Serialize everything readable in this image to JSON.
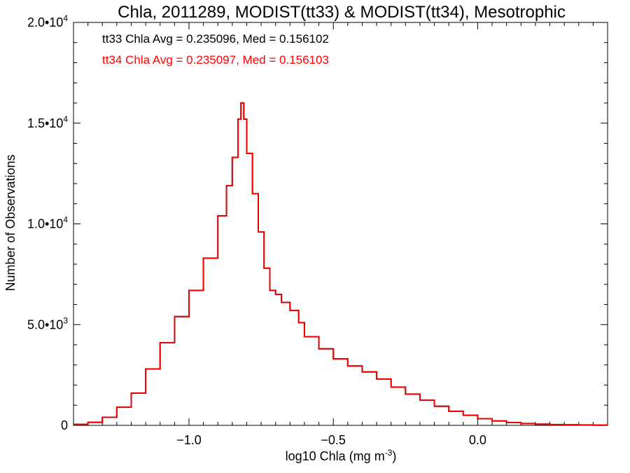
{
  "chart_data": {
    "type": "line",
    "title": "Chla, 2011289, MODIST(tt33) & MODIST(tt34), Mesotrophic",
    "xlabel": "log10 Chla (mg m",
    "xlabel_sup": "-3",
    "xlabel_end": ")",
    "ylabel": "Number of Observations",
    "xlim": [
      -1.4,
      0.45
    ],
    "ylim": [
      0,
      20000
    ],
    "x_ticks": [
      {
        "value": -1.0,
        "label": "−1.0"
      },
      {
        "value": -0.5,
        "label": "−0.5"
      },
      {
        "value": 0.0,
        "label": "0.0"
      }
    ],
    "y_ticks": [
      {
        "value": 0,
        "mant": "0",
        "exp": ""
      },
      {
        "value": 5000,
        "mant": "5.0•10",
        "exp": "3"
      },
      {
        "value": 10000,
        "mant": "1.0•10",
        "exp": "4"
      },
      {
        "value": 15000,
        "mant": "1.5•10",
        "exp": "4"
      },
      {
        "value": 20000,
        "mant": "2.0•10",
        "exp": "4"
      }
    ],
    "annotations": [
      {
        "text": "tt33 Chla Avg = 0.235096, Med = 0.156102",
        "color": "#000000"
      },
      {
        "text": "tt34 Chla Avg = 0.235097, Med = 0.156103",
        "color": "#ff0000"
      }
    ],
    "series": [
      {
        "color": "#000000",
        "x": [
          -1.4,
          -1.35,
          -1.3,
          -1.25,
          -1.2,
          -1.15,
          -1.1,
          -1.05,
          -1.0,
          -0.95,
          -0.9,
          -0.87,
          -0.85,
          -0.83,
          -0.82,
          -0.81,
          -0.8,
          -0.78,
          -0.76,
          -0.74,
          -0.72,
          -0.7,
          -0.68,
          -0.65,
          -0.62,
          -0.6,
          -0.55,
          -0.5,
          -0.45,
          -0.4,
          -0.35,
          -0.3,
          -0.25,
          -0.2,
          -0.15,
          -0.1,
          -0.05,
          0.0,
          0.05,
          0.1,
          0.15,
          0.2,
          0.25,
          0.3,
          0.35,
          0.4,
          0.45
        ],
        "y": [
          50,
          150,
          400,
          900,
          1600,
          2800,
          4100,
          5400,
          6700,
          8300,
          10400,
          11900,
          13300,
          15200,
          16000,
          15200,
          13500,
          11500,
          9600,
          7800,
          6700,
          6500,
          6100,
          5700,
          5100,
          4400,
          3800,
          3300,
          2950,
          2650,
          2300,
          1900,
          1550,
          1250,
          950,
          700,
          500,
          330,
          220,
          140,
          90,
          60,
          40,
          30,
          20,
          10,
          5
        ]
      },
      {
        "color": "#ff0000",
        "x": [
          -1.4,
          -1.35,
          -1.3,
          -1.25,
          -1.2,
          -1.15,
          -1.1,
          -1.05,
          -1.0,
          -0.95,
          -0.9,
          -0.87,
          -0.85,
          -0.83,
          -0.82,
          -0.81,
          -0.8,
          -0.78,
          -0.76,
          -0.74,
          -0.72,
          -0.7,
          -0.68,
          -0.65,
          -0.62,
          -0.6,
          -0.55,
          -0.5,
          -0.45,
          -0.4,
          -0.35,
          -0.3,
          -0.25,
          -0.2,
          -0.15,
          -0.1,
          -0.05,
          0.0,
          0.05,
          0.1,
          0.15,
          0.2,
          0.25,
          0.3,
          0.35,
          0.4,
          0.45
        ],
        "y": [
          50,
          150,
          400,
          900,
          1600,
          2800,
          4100,
          5400,
          6700,
          8300,
          10400,
          11900,
          13300,
          15200,
          16000,
          15200,
          13500,
          11500,
          9600,
          7800,
          6700,
          6500,
          6100,
          5700,
          5100,
          4400,
          3800,
          3300,
          2950,
          2650,
          2300,
          1900,
          1550,
          1250,
          950,
          700,
          500,
          330,
          220,
          140,
          90,
          60,
          40,
          30,
          20,
          10,
          5
        ]
      }
    ],
    "grid": false,
    "step_plot": true
  }
}
